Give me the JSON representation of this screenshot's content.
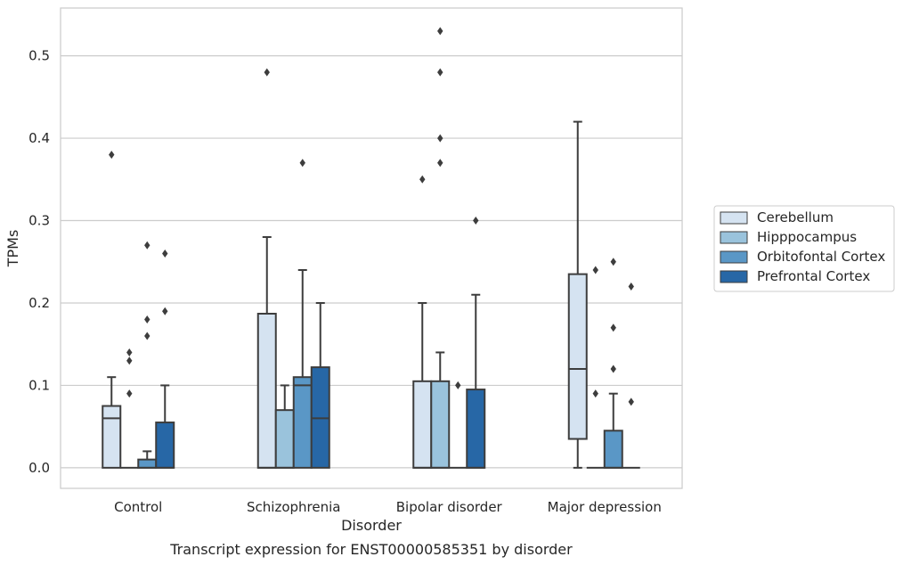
{
  "chart_data": {
    "type": "boxplot",
    "caption": "Transcript expression for ENST00000585351 by disorder",
    "xlabel": "Disorder",
    "ylabel": "TPMs",
    "ylim": [
      -0.025,
      0.558
    ],
    "yticks": [
      0.0,
      0.1,
      0.2,
      0.3,
      0.4,
      0.5
    ],
    "ytick_labels": [
      "0.0",
      "0.1",
      "0.2",
      "0.3",
      "0.4",
      "0.5"
    ],
    "grid": true,
    "legend_position": "right",
    "categories": [
      "Control",
      "Schizophrenia",
      "Bipolar disorder",
      "Major depression"
    ],
    "series": [
      {
        "name": "Cerebellum",
        "color": "#d5e3f1",
        "boxes": [
          {
            "q1": 0.0,
            "median": 0.06,
            "q3": 0.075,
            "whisker_low": 0.0,
            "whisker_high": 0.11,
            "outliers": [
              0.38
            ]
          },
          {
            "q1": 0.0,
            "median": 0.0,
            "q3": 0.187,
            "whisker_low": 0.0,
            "whisker_high": 0.28,
            "outliers": [
              0.48
            ]
          },
          {
            "q1": 0.0,
            "median": 0.0,
            "q3": 0.105,
            "whisker_low": 0.0,
            "whisker_high": 0.2,
            "outliers": [
              0.35
            ]
          },
          {
            "q1": 0.035,
            "median": 0.12,
            "q3": 0.235,
            "whisker_low": 0.0,
            "whisker_high": 0.42,
            "outliers": []
          }
        ]
      },
      {
        "name": "Hipppocampus",
        "color": "#9ac3dc",
        "boxes": [
          {
            "q1": 0.0,
            "median": 0.0,
            "q3": 0.0,
            "whisker_low": 0.0,
            "whisker_high": 0.0,
            "outliers": [
              0.09,
              0.13,
              0.14
            ]
          },
          {
            "q1": 0.0,
            "median": 0.0,
            "q3": 0.07,
            "whisker_low": 0.0,
            "whisker_high": 0.1,
            "outliers": []
          },
          {
            "q1": 0.0,
            "median": 0.0,
            "q3": 0.105,
            "whisker_low": 0.0,
            "whisker_high": 0.14,
            "outliers": [
              0.37,
              0.4,
              0.48,
              0.53
            ]
          },
          {
            "q1": 0.0,
            "median": 0.0,
            "q3": 0.0,
            "whisker_low": 0.0,
            "whisker_high": 0.0,
            "outliers": [
              0.09,
              0.24
            ]
          }
        ]
      },
      {
        "name": "Orbitofontal Cortex",
        "color": "#5a97c6",
        "boxes": [
          {
            "q1": 0.0,
            "median": 0.0,
            "q3": 0.01,
            "whisker_low": 0.0,
            "whisker_high": 0.02,
            "outliers": [
              0.16,
              0.18,
              0.27
            ]
          },
          {
            "q1": 0.0,
            "median": 0.1,
            "q3": 0.11,
            "whisker_low": 0.0,
            "whisker_high": 0.24,
            "outliers": [
              0.37
            ]
          },
          {
            "q1": 0.0,
            "median": 0.0,
            "q3": 0.0,
            "whisker_low": 0.0,
            "whisker_high": 0.0,
            "outliers": [
              0.1
            ]
          },
          {
            "q1": 0.0,
            "median": 0.0,
            "q3": 0.045,
            "whisker_low": 0.0,
            "whisker_high": 0.09,
            "outliers": [
              0.12,
              0.17,
              0.25
            ]
          }
        ]
      },
      {
        "name": "Prefrontal Cortex",
        "color": "#2767a6",
        "boxes": [
          {
            "q1": 0.0,
            "median": 0.0,
            "q3": 0.055,
            "whisker_low": 0.0,
            "whisker_high": 0.1,
            "outliers": [
              0.19,
              0.26
            ]
          },
          {
            "q1": 0.0,
            "median": 0.06,
            "q3": 0.122,
            "whisker_low": 0.0,
            "whisker_high": 0.2,
            "outliers": []
          },
          {
            "q1": 0.0,
            "median": 0.0,
            "q3": 0.095,
            "whisker_low": 0.0,
            "whisker_high": 0.21,
            "outliers": [
              0.3
            ]
          },
          {
            "q1": 0.0,
            "median": 0.0,
            "q3": 0.0,
            "whisker_low": 0.0,
            "whisker_high": 0.0,
            "outliers": [
              0.08,
              0.22
            ]
          }
        ]
      }
    ]
  }
}
